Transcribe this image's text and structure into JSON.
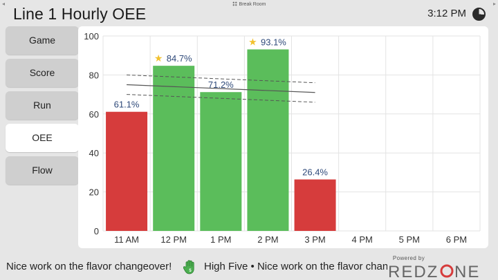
{
  "window": {
    "left_arrow": "◂",
    "right_arrow": "▸",
    "location_label": "Break Room"
  },
  "header": {
    "title": "Line 1 Hourly OEE",
    "time": "3:12 PM"
  },
  "nav": {
    "items": [
      {
        "label": "Game",
        "active": false
      },
      {
        "label": "Score",
        "active": false
      },
      {
        "label": "Run",
        "active": false
      },
      {
        "label": "OEE",
        "active": true
      },
      {
        "label": "Flow",
        "active": false
      }
    ]
  },
  "chart_data": {
    "type": "bar",
    "categories": [
      "11 AM",
      "12 PM",
      "1 PM",
      "2 PM",
      "3 PM",
      "4 PM",
      "5 PM",
      "6 PM"
    ],
    "values": [
      61.1,
      84.7,
      71.2,
      93.1,
      26.4,
      null,
      null,
      null
    ],
    "labels": [
      "61.1%",
      "84.7%",
      "71.2%",
      "93.1%",
      "26.4%",
      "",
      "",
      ""
    ],
    "starred": [
      false,
      true,
      false,
      true,
      false,
      false,
      false,
      false
    ],
    "status": [
      "below",
      "above",
      "above",
      "above",
      "below",
      null,
      null,
      null
    ],
    "ylim": [
      0,
      100
    ],
    "yticks": [
      0,
      20,
      40,
      60,
      80,
      100
    ],
    "target_band": {
      "x_start": "11 AM",
      "x_end": "3 PM",
      "center": [
        75,
        71
      ],
      "upper": [
        80,
        76
      ],
      "lower": [
        70,
        66
      ]
    },
    "grid": true,
    "colors": {
      "above": "#5bbd5b",
      "below": "#d63c3c",
      "star": "#f2c12e",
      "label": "#2f4a7a",
      "grid": "#e3e3e3",
      "target": "#555555"
    }
  },
  "ticker": {
    "message_1": "Nice work on the flavor changeover!",
    "hand_icon": "raised-hand-icon",
    "hand_badge": "5",
    "message_2": "High Five • Nice work on the flavor changeover!"
  },
  "brand": {
    "powered_by": "Powered by",
    "logo_text": "REDZONE",
    "colors": {
      "red": "#d63c3c",
      "gray": "#666666"
    }
  }
}
